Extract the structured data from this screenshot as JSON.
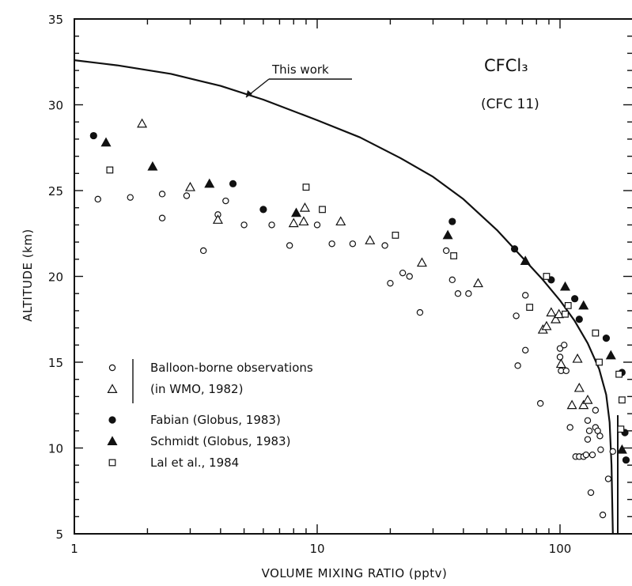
{
  "chart_data": {
    "type": "scatter",
    "title": "CFCl₃",
    "subtitle": "(CFC 11)",
    "xlabel": "VOLUME MIXING RATIO (pptv)",
    "ylabel": "ALTITUDE (km)",
    "x_scale": "log",
    "xlim": [
      1,
      175
    ],
    "ylim": [
      5,
      35
    ],
    "x_ticks": [
      {
        "value": 1,
        "label": "1"
      },
      {
        "value": 10,
        "label": "10"
      },
      {
        "value": 100,
        "label": "100"
      }
    ],
    "y_ticks": [
      {
        "value": 5,
        "label": "5"
      },
      {
        "value": 10,
        "label": "10"
      },
      {
        "value": 15,
        "label": "15"
      },
      {
        "value": 20,
        "label": "20"
      },
      {
        "value": 25,
        "label": "25"
      },
      {
        "value": 30,
        "label": "30"
      },
      {
        "value": 35,
        "label": "35"
      }
    ],
    "grid": false,
    "legend_position": "lower-left",
    "curve": {
      "label": "This work",
      "x": [
        1.0,
        1.5,
        2.5,
        4.0,
        6.0,
        10,
        15,
        22,
        30,
        40,
        55,
        70,
        85,
        100,
        115,
        130,
        145,
        155,
        160,
        163,
        165
      ],
      "y": [
        32.6,
        32.3,
        31.8,
        31.1,
        30.3,
        29.1,
        28.1,
        26.9,
        25.8,
        24.5,
        22.7,
        21.1,
        19.8,
        18.6,
        17.4,
        16.1,
        14.6,
        13.1,
        11.5,
        9.0,
        5.0
      ]
    },
    "legend": [
      {
        "marker": "open-circle",
        "label": "Balloon-borne observations"
      },
      {
        "marker": "open-triangle",
        "label": "(in WMO, 1982)"
      },
      {
        "marker": "filled-circle",
        "label": "Fabian (Globus, 1983)"
      },
      {
        "marker": "filled-triangle",
        "label": "Schmidt (Globus, 1983)"
      },
      {
        "marker": "open-square",
        "label": "Lal et al., 1984"
      }
    ],
    "series": [
      {
        "name": "Balloon-borne observations",
        "marker": "open-circle",
        "points": [
          [
            1.25,
            24.5
          ],
          [
            1.7,
            24.6
          ],
          [
            2.3,
            24.8
          ],
          [
            2.3,
            23.4
          ],
          [
            2.9,
            24.7
          ],
          [
            3.4,
            21.5
          ],
          [
            3.9,
            23.6
          ],
          [
            4.2,
            24.4
          ],
          [
            5.0,
            23.0
          ],
          [
            6.5,
            23.0
          ],
          [
            7.7,
            21.8
          ],
          [
            10.0,
            23.0
          ],
          [
            11.5,
            21.9
          ],
          [
            14.0,
            21.9
          ],
          [
            19.0,
            21.8
          ],
          [
            20.0,
            19.6
          ],
          [
            22.5,
            20.2
          ],
          [
            24.0,
            20.0
          ],
          [
            26.5,
            17.9
          ],
          [
            34.0,
            21.5
          ],
          [
            36.0,
            19.8
          ],
          [
            38.0,
            19.0
          ],
          [
            42.0,
            19.0
          ],
          [
            66.0,
            17.7
          ],
          [
            67.0,
            14.8
          ],
          [
            72.0,
            18.9
          ],
          [
            72.0,
            15.7
          ],
          [
            83.0,
            12.6
          ],
          [
            100.0,
            15.8
          ],
          [
            100.0,
            15.3
          ],
          [
            101.0,
            14.5
          ],
          [
            104.0,
            16.0
          ],
          [
            106.0,
            14.5
          ],
          [
            110.0,
            11.2
          ],
          [
            116.0,
            9.5
          ],
          [
            120.0,
            9.5
          ],
          [
            125.0,
            9.5
          ],
          [
            128.0,
            9.6
          ],
          [
            130.0,
            11.6
          ],
          [
            130.0,
            10.5
          ],
          [
            132.0,
            11.0
          ],
          [
            134.0,
            7.4
          ],
          [
            136.0,
            9.6
          ],
          [
            140.0,
            12.2
          ],
          [
            140.0,
            11.2
          ],
          [
            143.0,
            11.0
          ],
          [
            146.0,
            10.7
          ],
          [
            147.0,
            9.9
          ],
          [
            150.0,
            6.1
          ],
          [
            158.0,
            8.2
          ],
          [
            165.0,
            9.8
          ]
        ]
      },
      {
        "name": "(in WMO, 1982)",
        "marker": "open-triangle",
        "points": [
          [
            1.9,
            28.9
          ],
          [
            3.0,
            25.2
          ],
          [
            3.9,
            23.3
          ],
          [
            8.0,
            23.1
          ],
          [
            8.8,
            23.2
          ],
          [
            8.9,
            24.0
          ],
          [
            12.5,
            23.2
          ],
          [
            16.5,
            22.1
          ],
          [
            27.0,
            20.8
          ],
          [
            46.0,
            19.6
          ],
          [
            85.0,
            16.9
          ],
          [
            88.0,
            17.1
          ],
          [
            92.0,
            17.9
          ],
          [
            96.0,
            17.5
          ],
          [
            99.0,
            17.8
          ],
          [
            101.0,
            14.9
          ],
          [
            112.0,
            12.5
          ],
          [
            118.0,
            15.2
          ],
          [
            120.0,
            13.5
          ],
          [
            125.0,
            12.5
          ],
          [
            130.0,
            12.8
          ]
        ]
      },
      {
        "name": "Fabian (Globus, 1983)",
        "marker": "filled-circle",
        "points": [
          [
            1.2,
            28.2
          ],
          [
            4.5,
            25.4
          ],
          [
            6.0,
            23.9
          ],
          [
            36.0,
            23.2
          ],
          [
            65.0,
            21.6
          ],
          [
            92.0,
            19.8
          ],
          [
            115.0,
            18.7
          ],
          [
            120.0,
            17.5
          ],
          [
            155.0,
            16.4
          ],
          [
            180.0,
            14.4
          ],
          [
            185.0,
            10.9
          ],
          [
            187.0,
            9.3
          ]
        ]
      },
      {
        "name": "Schmidt (Globus, 1983)",
        "marker": "filled-triangle",
        "points": [
          [
            1.35,
            27.8
          ],
          [
            2.1,
            26.4
          ],
          [
            3.6,
            25.4
          ],
          [
            8.2,
            23.7
          ],
          [
            34.5,
            22.4
          ],
          [
            72.0,
            20.9
          ],
          [
            105.0,
            19.4
          ],
          [
            125.0,
            18.3
          ],
          [
            162.0,
            15.4
          ],
          [
            180.0,
            9.9
          ]
        ]
      },
      {
        "name": "Lal et al., 1984",
        "marker": "open-square",
        "points": [
          [
            1.4,
            26.2
          ],
          [
            9.0,
            25.2
          ],
          [
            10.5,
            23.9
          ],
          [
            21.0,
            22.4
          ],
          [
            36.5,
            21.2
          ],
          [
            75.0,
            18.2
          ],
          [
            88.0,
            20.0
          ],
          [
            105.0,
            17.8
          ],
          [
            108.0,
            18.3
          ],
          [
            140.0,
            16.7
          ],
          [
            145.0,
            15.0
          ],
          [
            175.0,
            14.3
          ],
          [
            178.0,
            11.1
          ],
          [
            180.0,
            12.8
          ]
        ]
      }
    ]
  }
}
